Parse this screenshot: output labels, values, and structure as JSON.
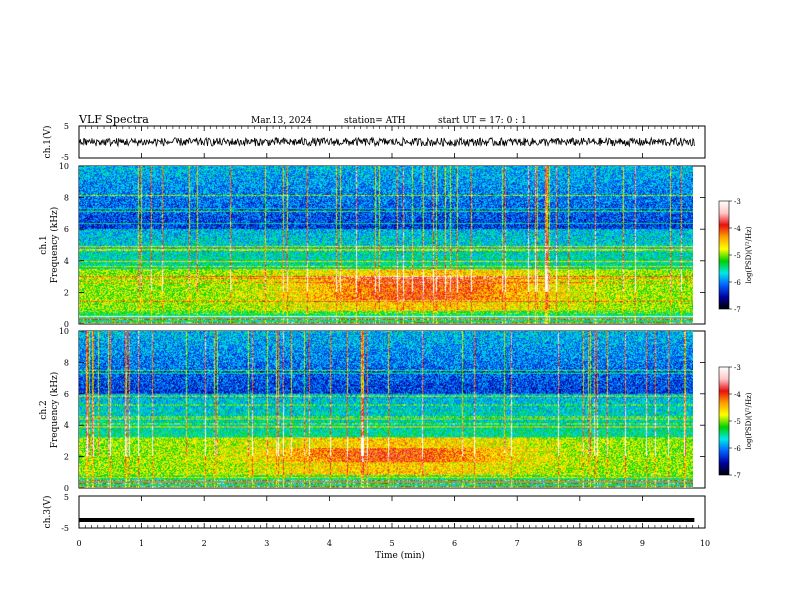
{
  "header": {
    "title": "VLF  Spectra",
    "date": "Mar.13, 2024",
    "station": "station= ATH",
    "start": "start  UT  =   17: 0   : 1"
  },
  "colorbar": {
    "label": "log(PSD)(V²/Hz)",
    "ticks": [
      "-3",
      "-4",
      "-5",
      "-6",
      "-7"
    ],
    "stops": [
      "#ffffff",
      "#ffc8c8",
      "#e81010",
      "#ffa000",
      "#ffff00",
      "#00d000",
      "#00e8e8",
      "#0060ff",
      "#0000a0",
      "#000000"
    ]
  },
  "chart_data": [
    {
      "type": "line",
      "panel": "ch.1",
      "ylabel": "ch.1(V)",
      "ylim": [
        -5,
        5
      ],
      "yticks": [
        "5",
        "-5"
      ],
      "xlim": [
        0,
        10
      ],
      "series": [
        {
          "description": "noisy waveform",
          "mean": 0,
          "amplitude": 1.3
        }
      ]
    },
    {
      "type": "heatmap",
      "panel": "ch.1",
      "ylabel": "ch.1",
      "ylabel2": "Frequency  (kHz)",
      "ylim": [
        0,
        10
      ],
      "yticks": [
        "10",
        "8",
        "6",
        "4",
        "2",
        "0"
      ],
      "xlim": [
        0,
        10
      ],
      "data_end_min": 9.83,
      "strong_band_khz": [
        0.8,
        3.5
      ],
      "hot_band_khz": [
        1.5,
        3.0
      ],
      "hot_band_peak_min": 5.5
    },
    {
      "type": "heatmap",
      "panel": "ch.2",
      "ylabel": "ch.2",
      "ylabel2": "Frequency  (kHz)",
      "ylim": [
        0,
        10
      ],
      "yticks": [
        "10",
        "8",
        "6",
        "4",
        "2",
        "0"
      ],
      "xlim": [
        0,
        10
      ],
      "data_end_min": 9.83,
      "strong_band_khz": [
        0.8,
        3.2
      ],
      "hot_band_khz": [
        1.6,
        2.5
      ],
      "hot_band_peak_min": 5.0
    },
    {
      "type": "line",
      "panel": "ch.3",
      "ylabel": "ch.3(V)",
      "ylim": [
        -5,
        5
      ],
      "yticks": [
        "5",
        "-5"
      ],
      "xlim": [
        0,
        10
      ],
      "series": [
        {
          "description": "flat thick line",
          "value": -2.5
        }
      ]
    }
  ],
  "xaxis": {
    "label": "Time  (min)",
    "ticks": [
      "0",
      "1",
      "2",
      "3",
      "4",
      "5",
      "6",
      "7",
      "8",
      "9",
      "10"
    ]
  }
}
